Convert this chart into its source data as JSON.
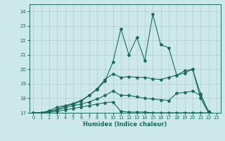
{
  "xlabel": "Humidex (Indice chaleur)",
  "xlim": [
    -0.5,
    23.5
  ],
  "ylim": [
    17,
    24.5
  ],
  "yticks": [
    17,
    18,
    19,
    20,
    21,
    22,
    23,
    24
  ],
  "xticks": [
    0,
    1,
    2,
    3,
    4,
    5,
    6,
    7,
    8,
    9,
    10,
    11,
    12,
    13,
    14,
    15,
    16,
    17,
    18,
    19,
    20,
    21,
    22,
    23
  ],
  "bg_color": "#cde8e8",
  "line_color": "#1a6b5e",
  "grid_color": "#aecece",
  "series": [
    [
      17.0,
      17.0,
      17.15,
      17.4,
      17.5,
      17.65,
      17.85,
      18.2,
      18.6,
      19.2,
      20.5,
      22.8,
      21.0,
      22.2,
      20.6,
      23.8,
      21.7,
      21.5,
      19.6,
      19.9,
      20.0,
      18.0,
      17.0,
      16.85
    ],
    [
      17.0,
      17.0,
      17.1,
      17.25,
      17.45,
      17.6,
      17.8,
      18.2,
      18.65,
      19.3,
      19.7,
      19.45,
      19.5,
      19.45,
      19.45,
      19.35,
      19.3,
      19.45,
      19.6,
      19.75,
      20.0,
      18.3,
      17.05,
      16.85
    ],
    [
      17.0,
      17.0,
      17.1,
      17.2,
      17.35,
      17.5,
      17.6,
      17.75,
      17.95,
      18.2,
      18.5,
      18.2,
      18.2,
      18.1,
      18.0,
      17.95,
      17.9,
      17.85,
      18.35,
      18.4,
      18.5,
      18.2,
      17.1,
      16.85
    ],
    [
      17.0,
      17.0,
      17.05,
      17.1,
      17.2,
      17.3,
      17.4,
      17.5,
      17.6,
      17.7,
      17.75,
      17.1,
      17.05,
      17.05,
      17.05,
      17.0,
      17.0,
      17.0,
      17.0,
      17.0,
      17.0,
      17.0,
      17.0,
      16.85
    ]
  ]
}
